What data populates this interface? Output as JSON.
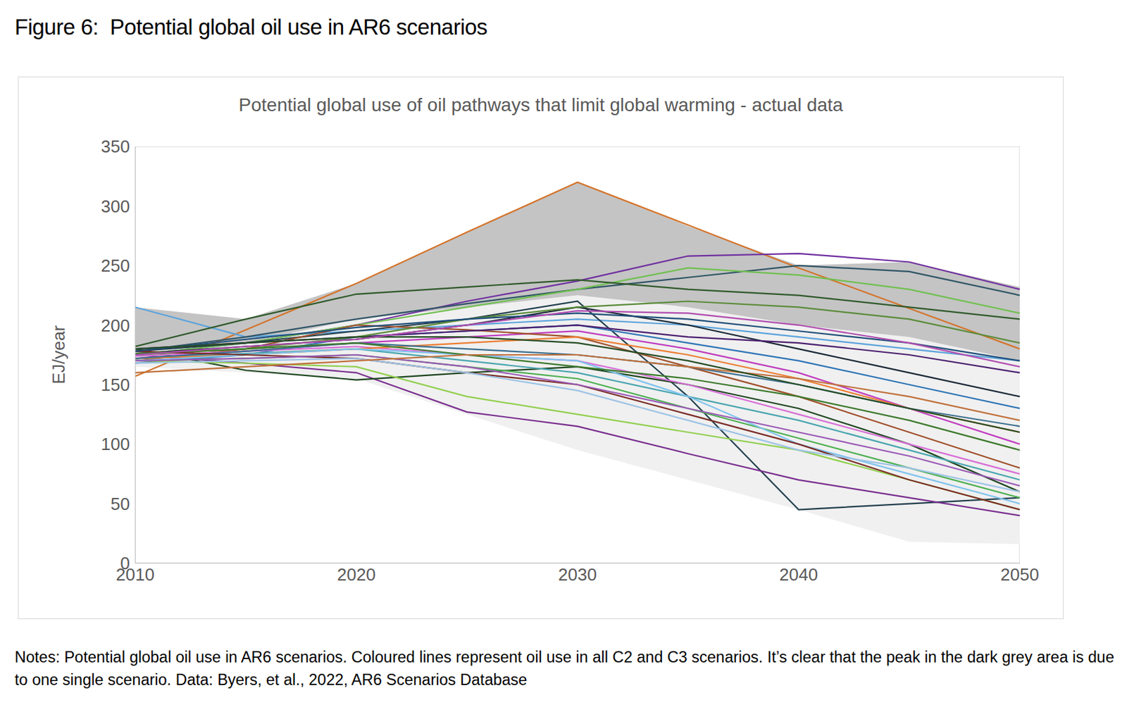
{
  "chart_data": {
    "type": "line",
    "figure_title": "Figure 6:  Potential global oil use in AR6 scenarios",
    "title": "Potential global use of oil pathways that limit global warming - actual data",
    "ylabel": "EJ/year",
    "notes": "Notes: Potential global oil use in AR6 scenarios. Coloured lines represent oil use in all C2 and C3 scenarios. It’s clear that the peak in the dark grey area is due to one single scenario. Data: Byers, et al., 2022, AR6 Scenarios Database",
    "x": [
      2010,
      2015,
      2020,
      2025,
      2030,
      2035,
      2040,
      2045,
      2050
    ],
    "xlim": [
      2010,
      2050
    ],
    "xticks": [
      2010,
      2020,
      2030,
      2040,
      2050
    ],
    "ylim": [
      0,
      350
    ],
    "yticks": [
      0,
      50,
      100,
      150,
      200,
      250,
      300,
      350
    ],
    "grid": false,
    "legend": false,
    "bands": [
      {
        "color": "#f0f0f0",
        "low": [
          165,
          160,
          155,
          125,
          95,
          70,
          45,
          18,
          16
        ],
        "high": [
          180,
          185,
          205,
          215,
          225,
          215,
          200,
          190,
          170
        ]
      },
      {
        "color": "#c4c4c4",
        "low": [
          180,
          185,
          205,
          215,
          225,
          215,
          200,
          190,
          170
        ],
        "high": [
          215,
          205,
          235,
          278,
          320,
          283,
          250,
          253,
          232
        ]
      }
    ],
    "series": [
      {
        "color": "#d4732a",
        "values": [
          157,
          196,
          235,
          278,
          320,
          284,
          248,
          214,
          180
        ]
      },
      {
        "color": "#5ba3dd",
        "values": [
          215,
          190,
          195,
          200,
          205,
          200,
          190,
          180,
          170
        ]
      },
      {
        "color": "#7030a0",
        "values": [
          175,
          185,
          200,
          220,
          237,
          258,
          260,
          253,
          230
        ]
      },
      {
        "color": "#2f5566",
        "values": [
          178,
          190,
          205,
          218,
          230,
          240,
          250,
          245,
          225
        ]
      },
      {
        "color": "#70c050",
        "values": [
          175,
          185,
          200,
          215,
          230,
          248,
          242,
          230,
          210
        ]
      },
      {
        "color": "#2f5a2a",
        "values": [
          182,
          205,
          226,
          232,
          238,
          230,
          225,
          215,
          205
        ]
      },
      {
        "color": "#23404f",
        "values": [
          178,
          185,
          195,
          205,
          220,
          140,
          45,
          50,
          55
        ]
      },
      {
        "color": "#7a2f8f",
        "values": [
          175,
          168,
          160,
          127,
          115,
          92,
          70,
          55,
          40
        ]
      },
      {
        "color": "#1e4620",
        "values": [
          180,
          162,
          154,
          160,
          165,
          150,
          130,
          100,
          60
        ]
      },
      {
        "color": "#c03cc0",
        "values": [
          172,
          178,
          185,
          190,
          195,
          180,
          160,
          130,
          100
        ]
      },
      {
        "color": "#2e75b6",
        "values": [
          168,
          175,
          190,
          195,
          200,
          185,
          170,
          150,
          130
        ]
      },
      {
        "color": "#a0502a",
        "values": [
          170,
          180,
          200,
          196,
          190,
          165,
          140,
          110,
          80
        ]
      },
      {
        "color": "#4aa6b0",
        "values": [
          172,
          176,
          180,
          170,
          160,
          140,
          120,
          95,
          70
        ]
      },
      {
        "color": "#92d050",
        "values": [
          170,
          168,
          165,
          140,
          125,
          110,
          95,
          70,
          45
        ]
      },
      {
        "color": "#d86fd8",
        "values": [
          174,
          178,
          182,
          175,
          170,
          150,
          125,
          100,
          75
        ]
      },
      {
        "color": "#1b2a38",
        "values": [
          176,
          182,
          188,
          200,
          215,
          200,
          180,
          160,
          140
        ]
      },
      {
        "color": "#ed7d31",
        "values": [
          172,
          175,
          180,
          185,
          190,
          175,
          155,
          130,
          110
        ]
      },
      {
        "color": "#4caf50",
        "values": [
          170,
          172,
          175,
          165,
          155,
          130,
          105,
          80,
          55
        ]
      },
      {
        "color": "#7fc3ee",
        "values": [
          170,
          175,
          180,
          175,
          170,
          140,
          100,
          75,
          50
        ]
      },
      {
        "color": "#4b1f6f",
        "values": [
          180,
          185,
          190,
          195,
          200,
          190,
          185,
          175,
          160
        ]
      },
      {
        "color": "#5b8c3a",
        "values": [
          175,
          180,
          190,
          205,
          215,
          220,
          215,
          205,
          185
        ]
      },
      {
        "color": "#3b6e8f",
        "values": [
          172,
          178,
          185,
          180,
          175,
          165,
          150,
          130,
          115
        ]
      },
      {
        "color": "#7b2d26",
        "values": [
          178,
          175,
          172,
          160,
          150,
          125,
          100,
          70,
          45
        ]
      },
      {
        "color": "#9b59b6",
        "values": [
          170,
          172,
          175,
          165,
          150,
          130,
          110,
          90,
          65
        ]
      },
      {
        "color": "#3d7a2d",
        "values": [
          176,
          180,
          185,
          175,
          165,
          155,
          140,
          120,
          95
        ]
      },
      {
        "color": "#9dc3e6",
        "values": [
          168,
          170,
          172,
          160,
          145,
          120,
          95,
          80,
          60
        ]
      },
      {
        "color": "#c0703a",
        "values": [
          160,
          165,
          170,
          175,
          175,
          165,
          155,
          140,
          120
        ]
      },
      {
        "color": "#1f4e79",
        "values": [
          178,
          188,
          198,
          205,
          210,
          205,
          195,
          185,
          170
        ]
      },
      {
        "color": "#264d26",
        "values": [
          180,
          185,
          190,
          190,
          185,
          170,
          150,
          130,
          110
        ]
      },
      {
        "color": "#b04db0",
        "values": [
          175,
          182,
          188,
          200,
          212,
          210,
          200,
          185,
          165
        ]
      }
    ]
  }
}
